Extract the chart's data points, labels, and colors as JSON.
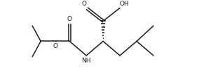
{
  "bg_color": "#ffffff",
  "line_color": "#1a1a1a",
  "line_width": 1.1,
  "font_size": 6.5,
  "figsize": [
    2.84,
    1.08
  ],
  "dpi": 100,
  "xlim": [
    -0.3,
    6.1
  ],
  "ylim": [
    -0.2,
    2.8
  ]
}
